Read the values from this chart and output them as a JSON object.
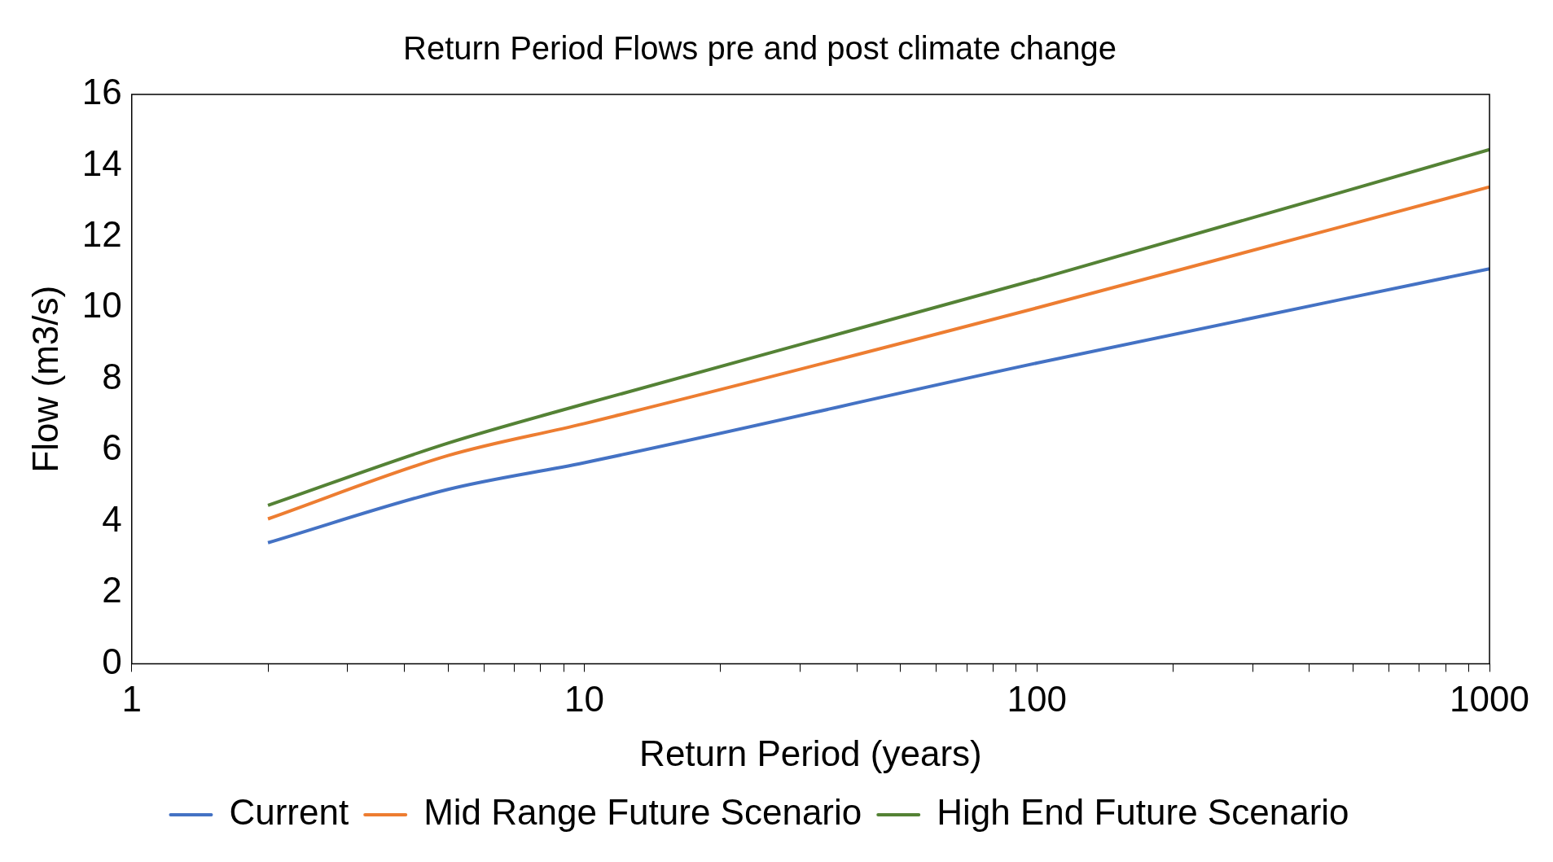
{
  "chart_data": {
    "type": "line",
    "title": "Return Period Flows pre and post climate change",
    "xlabel": "Return Period (years)",
    "ylabel": "Flow (m3/s)",
    "log": "x",
    "xlim": [
      1,
      1000
    ],
    "xticks": [
      1,
      {
        "value": 2,
        "label": null
      },
      {
        "value": 3,
        "label": null
      },
      {
        "value": 4,
        "label": null
      },
      {
        "value": 5,
        "label": null
      },
      {
        "value": 6,
        "label": null
      },
      {
        "value": 7,
        "label": null
      },
      {
        "value": 8,
        "label": null
      },
      {
        "value": 9,
        "label": null
      },
      10,
      {
        "value": 20,
        "label": null
      },
      {
        "value": 30,
        "label": null
      },
      {
        "value": 40,
        "label": null
      },
      {
        "value": 50,
        "label": null
      },
      {
        "value": 60,
        "label": null
      },
      {
        "value": 70,
        "label": null
      },
      {
        "value": 80,
        "label": null
      },
      {
        "value": 90,
        "label": null
      },
      100,
      {
        "value": 200,
        "label": null
      },
      {
        "value": 300,
        "label": null
      },
      {
        "value": 400,
        "label": null
      },
      {
        "value": 500,
        "label": null
      },
      {
        "value": 600,
        "label": null
      },
      {
        "value": 700,
        "label": null
      },
      {
        "value": 800,
        "label": null
      },
      {
        "value": 900,
        "label": null
      },
      1000
    ],
    "ylim": [
      0,
      16
    ],
    "yticks": [
      0,
      2,
      4,
      6,
      8,
      10,
      12,
      14,
      16
    ],
    "grid": false,
    "legend": "bottom",
    "marker": "none",
    "line_style": "solid",
    "x": [
      2,
      5,
      10,
      100,
      1000
    ],
    "series": [
      {
        "name": "Current",
        "color": "#4472c4",
        "values": [
          3.4,
          4.9,
          5.65,
          8.45,
          11.1
        ]
      },
      {
        "name": "Mid Range Future Scenario",
        "color": "#ed7d31",
        "values": [
          4.07,
          5.85,
          6.75,
          10.0,
          13.4
        ]
      },
      {
        "name": "High End Future Scenario",
        "color": "#548235",
        "values": [
          4.45,
          6.2,
          7.3,
          10.8,
          14.45
        ]
      }
    ]
  }
}
